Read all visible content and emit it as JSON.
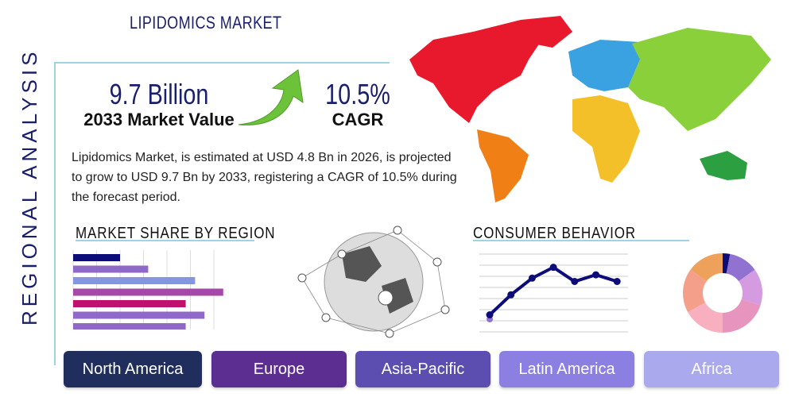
{
  "title": "LIPIDOMICS MARKET",
  "side_title": "REGIONAL ANALYSIS",
  "stats": {
    "market_value": "9.7 Billion",
    "market_value_label": "2033 Market Value",
    "cagr": "10.5%",
    "cagr_label": "CAGR"
  },
  "description": "Lipidomics Market, is estimated at USD 4.8 Bn in 2026, is projected to grow to USD 9.7 Bn by 2033, registering a CAGR of 10.5% during the forecast period.",
  "market_share": {
    "heading": "MARKET SHARE BY REGION",
    "bars": [
      {
        "value": 2,
        "color": "#0d0d7a"
      },
      {
        "value": 3.2,
        "color": "#9068c8"
      },
      {
        "value": 5.2,
        "color": "#8596e0"
      },
      {
        "value": 6.4,
        "color": "#a648a8"
      },
      {
        "value": 4.8,
        "color": "#c0106e"
      },
      {
        "value": 5.6,
        "color": "#9068c8"
      },
      {
        "value": 4.8,
        "color": "#9068c8"
      }
    ]
  },
  "consumer_behavior": {
    "heading": "CONSUMER BEHAVIOR",
    "line": [
      1,
      3.4,
      5.4,
      6.7,
      5,
      5.8,
      5
    ],
    "donut": [
      {
        "value": 3,
        "color": "#0d0d7a"
      },
      {
        "value": 12,
        "color": "#9272d0"
      },
      {
        "value": 15,
        "color": "#d49be0"
      },
      {
        "value": 20,
        "color": "#e795be"
      },
      {
        "value": 17,
        "color": "#f8b0c0"
      },
      {
        "value": 18,
        "color": "#f49f8a"
      },
      {
        "value": 15,
        "color": "#eda15a"
      }
    ]
  },
  "regions": [
    {
      "label": "North America",
      "color": "#1f2e5c"
    },
    {
      "label": "Europe",
      "color": "#5d2e92"
    },
    {
      "label": "Asia-Pacific",
      "color": "#5b4eb0"
    },
    {
      "label": "Latin America",
      "color": "#8b80e2"
    },
    {
      "label": "Africa",
      "color": "#aaa9ee"
    }
  ]
}
